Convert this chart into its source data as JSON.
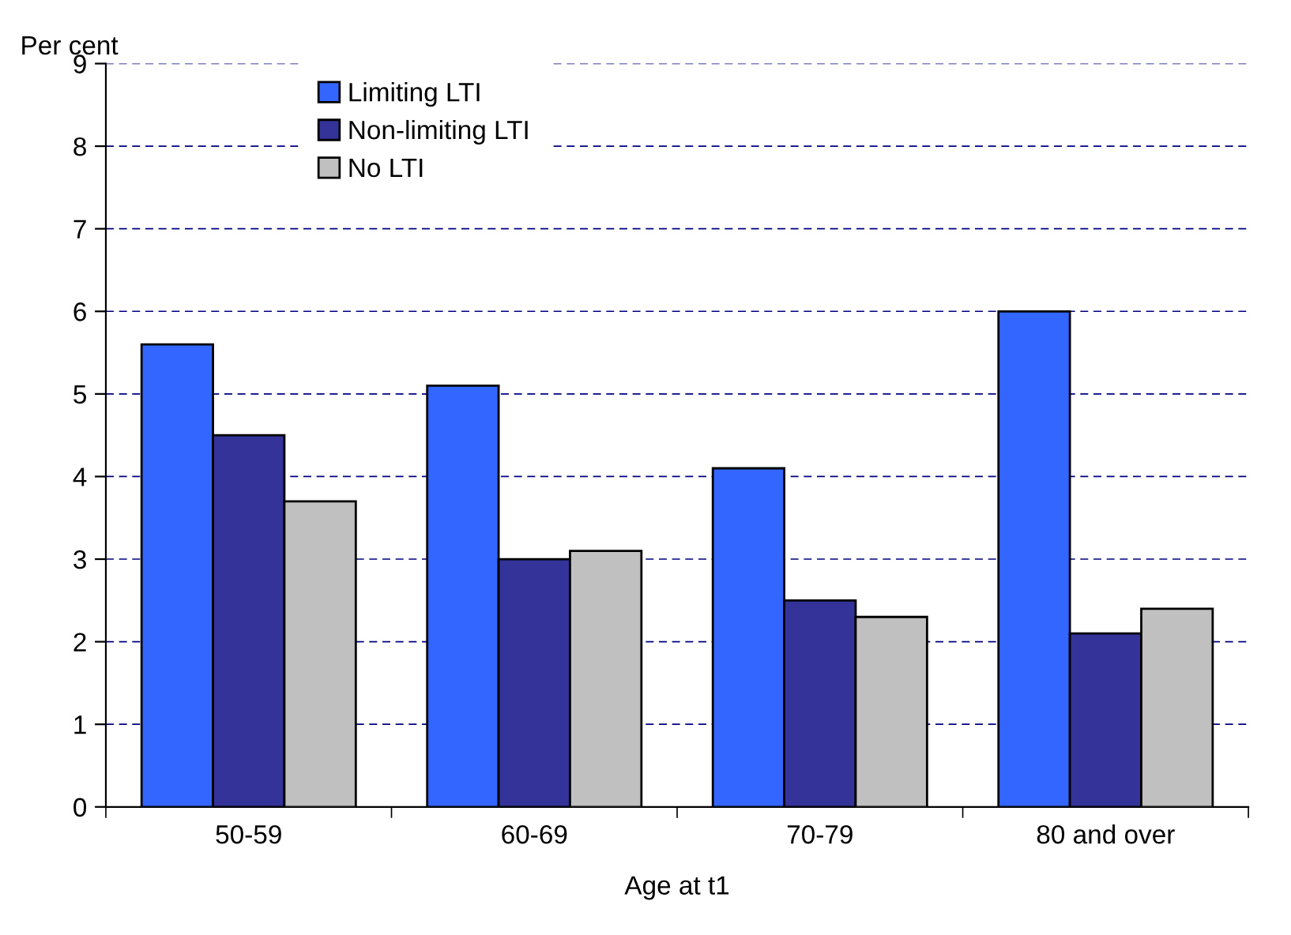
{
  "chart_data": {
    "type": "bar",
    "ylabel": "Per cent",
    "xlabel": "Age at t1",
    "categories": [
      "50-59",
      "60-69",
      "70-79",
      "80 and over"
    ],
    "series": [
      {
        "name": "Limiting LTI",
        "color": "#3366ff",
        "values": [
          5.6,
          5.1,
          4.1,
          6.0
        ]
      },
      {
        "name": "Non-limiting LTI",
        "color": "#333399",
        "values": [
          4.5,
          3.0,
          2.5,
          2.1
        ]
      },
      {
        "name": "No LTI",
        "color": "#c0c0c0",
        "values": [
          3.7,
          3.1,
          2.3,
          2.4
        ]
      }
    ],
    "ylim": [
      0,
      9
    ],
    "yticks": [
      0,
      1,
      2,
      3,
      4,
      5,
      6,
      7,
      8,
      9
    ],
    "grid": "y",
    "legend": "top left"
  }
}
